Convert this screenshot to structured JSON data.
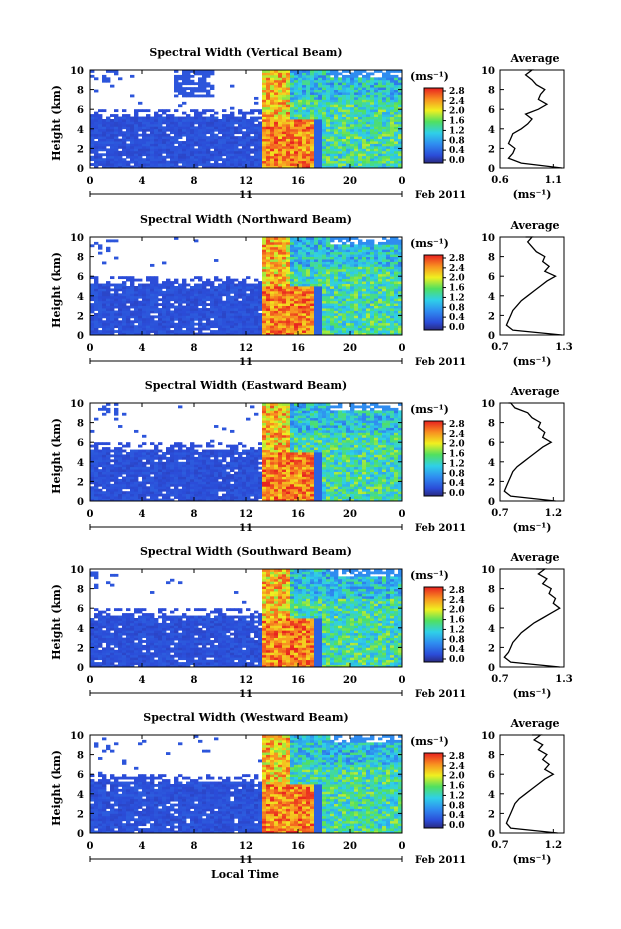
{
  "figure": {
    "xlabel": "Local Time",
    "date_label": "Feb 2011",
    "day_label": "11",
    "colorbar_unit": "(ms⁻¹)",
    "avg_title": "Average",
    "avg_xlabel": "(ms⁻¹)"
  },
  "chart_data": [
    {
      "type": "heatmap",
      "title": "Spectral Width (Vertical Beam)",
      "ylabel": "Height (km)",
      "xlabel": "Local Time",
      "x_ticks": [
        "0",
        "4",
        "8",
        "12",
        "16",
        "20",
        "0"
      ],
      "y_ticks": [
        "0",
        "2",
        "4",
        "6",
        "8",
        "10"
      ],
      "xlim": [
        0,
        24
      ],
      "ylim": [
        0,
        10
      ],
      "colorbar_ticks": [
        "0.0",
        "0.4",
        "0.8",
        "1.2",
        "1.6",
        "2.0",
        "2.4",
        "2.8"
      ],
      "average_profile": {
        "title": "Average",
        "xlabel": "(ms⁻¹)",
        "x_ticks": [
          "0.6",
          "1.1"
        ],
        "xlim": [
          0.6,
          1.2
        ],
        "ylim": [
          0,
          10
        ],
        "x": [
          1.18,
          0.8,
          0.68,
          0.72,
          0.74,
          0.68,
          0.7,
          0.72,
          0.8,
          0.86,
          0.9,
          0.84,
          0.96,
          1.04,
          0.96,
          0.98,
          1.02,
          0.94,
          0.9,
          0.84,
          0.9,
          0.86
        ],
        "y": [
          0,
          0.5,
          1,
          1.5,
          2,
          2.5,
          3,
          3.5,
          4,
          4.5,
          5,
          5.5,
          6,
          6.5,
          7,
          7.5,
          8,
          8.5,
          9,
          9.5,
          10,
          10
        ]
      }
    },
    {
      "type": "heatmap",
      "title": "Spectral Width (Northward Beam)",
      "ylabel": "Height (km)",
      "xlabel": "Local Time",
      "x_ticks": [
        "0",
        "4",
        "8",
        "12",
        "16",
        "20",
        "0"
      ],
      "y_ticks": [
        "0",
        "2",
        "4",
        "6",
        "8",
        "10"
      ],
      "xlim": [
        0,
        24
      ],
      "ylim": [
        0,
        10
      ],
      "colorbar_ticks": [
        "0.0",
        "0.4",
        "0.8",
        "1.2",
        "1.6",
        "2.0",
        "2.4",
        "2.8"
      ],
      "average_profile": {
        "title": "Average",
        "xlabel": "(ms⁻¹)",
        "x_ticks": [
          "0.7",
          "1.3"
        ],
        "xlim": [
          0.7,
          1.3
        ],
        "ylim": [
          0,
          10
        ],
        "x": [
          1.28,
          0.82,
          0.76,
          0.78,
          0.8,
          0.82,
          0.86,
          0.9,
          0.96,
          1.02,
          1.08,
          1.14,
          1.22,
          1.12,
          1.16,
          1.1,
          1.12,
          1.04,
          1.0,
          0.96,
          1.0,
          0.94
        ],
        "y": [
          0,
          0.5,
          1,
          1.5,
          2,
          2.5,
          3,
          3.5,
          4,
          4.5,
          5,
          5.5,
          6,
          6.5,
          7,
          7.5,
          8,
          8.5,
          9,
          9.5,
          10,
          10
        ]
      }
    },
    {
      "type": "heatmap",
      "title": "Spectral Width (Eastward Beam)",
      "ylabel": "Height (km)",
      "xlabel": "Local Time",
      "x_ticks": [
        "0",
        "4",
        "8",
        "12",
        "16",
        "20",
        "0"
      ],
      "y_ticks": [
        "0",
        "2",
        "4",
        "6",
        "8",
        "10"
      ],
      "xlim": [
        0,
        24
      ],
      "ylim": [
        0,
        10
      ],
      "colorbar_ticks": [
        "0.0",
        "0.4",
        "0.8",
        "1.2",
        "1.6",
        "2.0",
        "2.4",
        "2.8"
      ],
      "average_profile": {
        "title": "Average",
        "xlabel": "(ms⁻¹)",
        "x_ticks": [
          "0.7",
          "1.2"
        ],
        "xlim": [
          0.7,
          1.3
        ],
        "ylim": [
          0,
          10
        ],
        "x": [
          1.22,
          0.8,
          0.74,
          0.76,
          0.78,
          0.8,
          0.82,
          0.86,
          0.92,
          0.98,
          1.04,
          1.1,
          1.18,
          1.1,
          1.12,
          1.06,
          1.08,
          1.0,
          0.96,
          0.84,
          0.8,
          0.78
        ],
        "y": [
          0,
          0.5,
          1,
          1.5,
          2,
          2.5,
          3,
          3.5,
          4,
          4.5,
          5,
          5.5,
          6,
          6.5,
          7,
          7.5,
          8,
          8.5,
          9,
          9.5,
          10,
          10
        ]
      }
    },
    {
      "type": "heatmap",
      "title": "Spectral Width (Southward Beam)",
      "ylabel": "Height (km)",
      "xlabel": "Local Time",
      "x_ticks": [
        "0",
        "4",
        "8",
        "12",
        "16",
        "20",
        "0"
      ],
      "y_ticks": [
        "0",
        "2",
        "4",
        "6",
        "8",
        "10"
      ],
      "xlim": [
        0,
        24
      ],
      "ylim": [
        0,
        10
      ],
      "colorbar_ticks": [
        "0.0",
        "0.4",
        "0.8",
        "1.2",
        "1.6",
        "2.0",
        "2.4",
        "2.8"
      ],
      "average_profile": {
        "title": "Average",
        "xlabel": "(ms⁻¹)",
        "x_ticks": [
          "0.7",
          "1.3"
        ],
        "xlim": [
          0.7,
          1.3
        ],
        "ylim": [
          0,
          10
        ],
        "x": [
          1.26,
          0.8,
          0.74,
          0.78,
          0.8,
          0.82,
          0.86,
          0.9,
          0.96,
          1.02,
          1.1,
          1.18,
          1.26,
          1.2,
          1.22,
          1.16,
          1.18,
          1.1,
          1.14,
          1.06,
          1.12,
          1.04
        ],
        "y": [
          0,
          0.5,
          1,
          1.5,
          2,
          2.5,
          3,
          3.5,
          4,
          4.5,
          5,
          5.5,
          6,
          6.5,
          7,
          7.5,
          8,
          8.5,
          9,
          9.5,
          10,
          10
        ]
      }
    },
    {
      "type": "heatmap",
      "title": "Spectral Width (Westward Beam)",
      "ylabel": "Height (km)",
      "xlabel": "Local Time",
      "x_ticks": [
        "0",
        "4",
        "8",
        "12",
        "16",
        "20",
        "0"
      ],
      "y_ticks": [
        "0",
        "2",
        "4",
        "6",
        "8",
        "10"
      ],
      "xlim": [
        0,
        24
      ],
      "ylim": [
        0,
        10
      ],
      "colorbar_ticks": [
        "0.0",
        "0.4",
        "0.8",
        "1.2",
        "1.6",
        "2.0",
        "2.4",
        "2.8"
      ],
      "average_profile": {
        "title": "Average",
        "xlabel": "(ms⁻¹)",
        "x_ticks": [
          "0.7",
          "1.2"
        ],
        "xlim": [
          0.7,
          1.3
        ],
        "ylim": [
          0,
          10
        ],
        "x": [
          1.24,
          0.8,
          0.76,
          0.78,
          0.8,
          0.82,
          0.84,
          0.88,
          0.94,
          1.0,
          1.06,
          1.12,
          1.2,
          1.12,
          1.16,
          1.1,
          1.14,
          1.06,
          1.1,
          1.02,
          1.08,
          1.0
        ],
        "y": [
          0,
          0.5,
          1,
          1.5,
          2,
          2.5,
          3,
          3.5,
          4,
          4.5,
          5,
          5.5,
          6,
          6.5,
          7,
          7.5,
          8,
          8.5,
          9,
          9.5,
          10,
          10
        ]
      }
    }
  ]
}
